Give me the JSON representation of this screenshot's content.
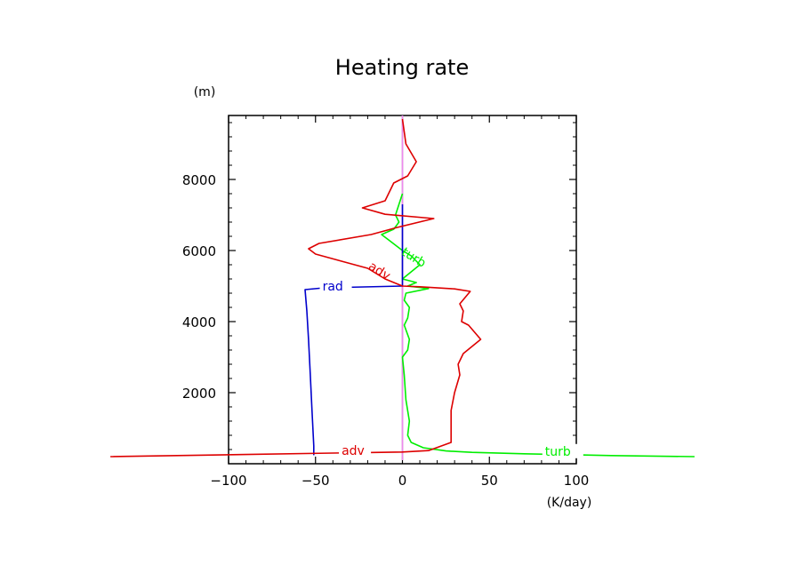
{
  "chart_data": {
    "type": "line",
    "title": "Heating rate",
    "ylabel": "(m)",
    "xlabel": "(K/day)",
    "xlim": [
      -100,
      100
    ],
    "ylim": [
      0,
      9800
    ],
    "x_ticks": [
      -100,
      -50,
      0,
      50,
      100
    ],
    "x_tick_labels": [
      "−100",
      "−50",
      "0",
      "50",
      "100"
    ],
    "y_ticks": [
      2000,
      4000,
      6000,
      8000
    ],
    "y_tick_labels": [
      "2000",
      "4000",
      "6000",
      "8000"
    ],
    "grid": false,
    "legend": "inline labels",
    "series": [
      {
        "name": "adv",
        "color": "#dd0000",
        "points": [
          [
            -168,
            200
          ],
          [
            -90,
            260
          ],
          [
            -40,
            300
          ],
          [
            0,
            330
          ],
          [
            15,
            370
          ],
          [
            28,
            600
          ],
          [
            28,
            1500
          ],
          [
            30,
            2000
          ],
          [
            33,
            2500
          ],
          [
            32,
            2800
          ],
          [
            35,
            3100
          ],
          [
            45,
            3500
          ],
          [
            38,
            3900
          ],
          [
            34,
            4000
          ],
          [
            35,
            4300
          ],
          [
            33,
            4500
          ],
          [
            39,
            4850
          ],
          [
            30,
            4920
          ],
          [
            10,
            4980
          ],
          [
            0,
            5000
          ],
          [
            -10,
            5200
          ],
          [
            -20,
            5500
          ],
          [
            -50,
            5900
          ],
          [
            -54,
            6050
          ],
          [
            -48,
            6200
          ],
          [
            -18,
            6450
          ],
          [
            -3,
            6650
          ],
          [
            18,
            6900
          ],
          [
            -10,
            7020
          ],
          [
            -23,
            7200
          ],
          [
            -10,
            7400
          ],
          [
            -5,
            7900
          ],
          [
            3,
            8100
          ],
          [
            8,
            8500
          ],
          [
            2,
            9000
          ],
          [
            0,
            9700
          ]
        ],
        "label_at": [
          -35,
          300
        ],
        "label2": "adv",
        "label2_at": [
          -20,
          5500
        ]
      },
      {
        "name": "turb",
        "color": "#00ee00",
        "points": [
          [
            168,
            200
          ],
          [
            120,
            230
          ],
          [
            70,
            280
          ],
          [
            40,
            320
          ],
          [
            25,
            360
          ],
          [
            12,
            450
          ],
          [
            5,
            600
          ],
          [
            3,
            800
          ],
          [
            4,
            1200
          ],
          [
            2,
            1800
          ],
          [
            1,
            2500
          ],
          [
            0,
            3000
          ],
          [
            3,
            3200
          ],
          [
            4,
            3500
          ],
          [
            1,
            3900
          ],
          [
            3,
            4100
          ],
          [
            4,
            4400
          ],
          [
            1,
            4600
          ],
          [
            2,
            4800
          ],
          [
            15,
            4930
          ],
          [
            3,
            5000
          ],
          [
            8,
            5100
          ],
          [
            0,
            5200
          ],
          [
            10,
            5600
          ],
          [
            5,
            5850
          ],
          [
            0,
            6000
          ],
          [
            -8,
            6300
          ],
          [
            -12,
            6450
          ],
          [
            -5,
            6600
          ],
          [
            -2,
            6800
          ],
          [
            -4,
            7000
          ],
          [
            -2,
            7300
          ],
          [
            0,
            7600
          ]
        ],
        "label_at": [
          82,
          280
        ],
        "label2": "turb",
        "label2_at": [
          -1,
          5900
        ]
      },
      {
        "name": "rad",
        "color": "#0000cc",
        "points": [
          [
            -51,
            240
          ],
          [
            -51,
            500
          ],
          [
            -52,
            1500
          ],
          [
            -53,
            2500
          ],
          [
            -54,
            3500
          ],
          [
            -55,
            4300
          ],
          [
            -56,
            4900
          ],
          [
            -45,
            4950
          ],
          [
            0,
            5000
          ],
          [
            0,
            5200
          ],
          [
            0,
            5600
          ],
          [
            0,
            6200
          ],
          [
            0,
            6800
          ],
          [
            0,
            7300
          ]
        ],
        "label_at": [
          -46,
          4920
        ]
      },
      {
        "name": "",
        "color": "#ee88ee",
        "points": [
          [
            0,
            100
          ],
          [
            0,
            500
          ],
          [
            0,
            1000
          ],
          [
            0,
            2000
          ],
          [
            0,
            3000
          ],
          [
            0,
            4000
          ],
          [
            0,
            5000
          ],
          [
            0,
            6000
          ],
          [
            0,
            7000
          ],
          [
            0,
            8000
          ],
          [
            0,
            9000
          ],
          [
            0,
            9800
          ]
        ]
      },
      {
        "name": "",
        "color": "#aaaaaa",
        "points": [
          [
            0,
            100
          ],
          [
            0,
            3000
          ],
          [
            0,
            5000
          ],
          [
            0,
            7000
          ],
          [
            0,
            9800
          ]
        ]
      }
    ]
  }
}
